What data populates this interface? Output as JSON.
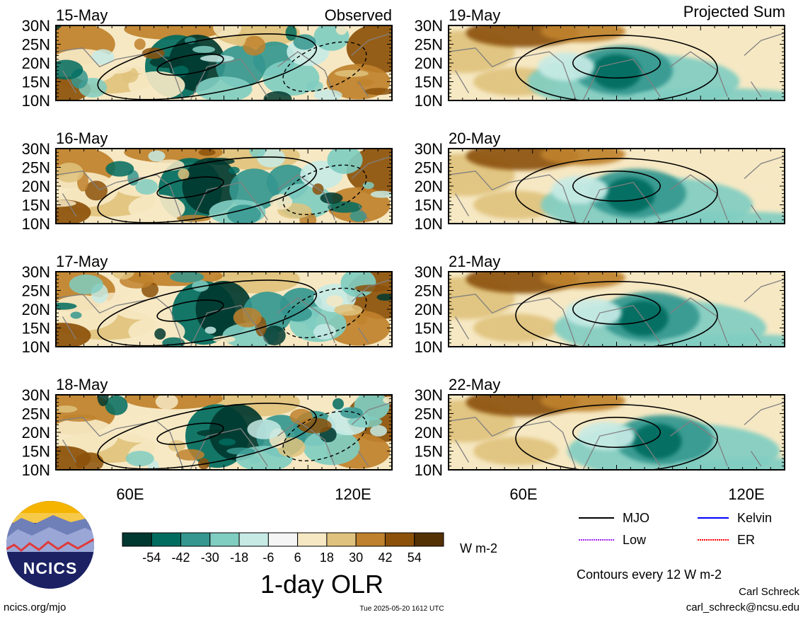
{
  "observed_label": "Observed",
  "projected_label": "Projected Sum",
  "y_ticks": [
    "30N",
    "25N",
    "20N",
    "15N",
    "10N"
  ],
  "x_ticks": [
    "60E",
    "120E"
  ],
  "panels": [
    {
      "date": "15-May",
      "column": "observed"
    },
    {
      "date": "16-May",
      "column": "observed"
    },
    {
      "date": "17-May",
      "column": "observed"
    },
    {
      "date": "18-May",
      "column": "observed"
    },
    {
      "date": "19-May",
      "column": "projected"
    },
    {
      "date": "20-May",
      "column": "projected"
    },
    {
      "date": "21-May",
      "column": "projected"
    },
    {
      "date": "22-May",
      "column": "projected"
    }
  ],
  "colorbar": {
    "labels": [
      "-54",
      "-42",
      "-30",
      "-18",
      "-6",
      "6",
      "18",
      "30",
      "42",
      "54"
    ],
    "colors": [
      "#01382f",
      "#006b5f",
      "#35978f",
      "#80cdc1",
      "#c7eae5",
      "#f5f5f5",
      "#f6e8c3",
      "#dfc27d",
      "#bf812d",
      "#8c510a",
      "#543005"
    ],
    "units": "W m-2",
    "title": "1-day OLR"
  },
  "legend": [
    {
      "label": "MJO",
      "color": "#000000"
    },
    {
      "label": "Kelvin",
      "color": "#0000ff"
    },
    {
      "label": "Low",
      "color": "#a020f0"
    },
    {
      "label": "ER",
      "color": "#ff0000"
    }
  ],
  "contour_note": "Contours every 12 W m-2",
  "logo_text": "NCICS",
  "footer": {
    "url": "ncics.org/mjo",
    "timestamp": "Tue 2025-05-20 1612 UTC",
    "author": "Carl Schreck",
    "email": "carl_schreck@ncsu.edu"
  }
}
